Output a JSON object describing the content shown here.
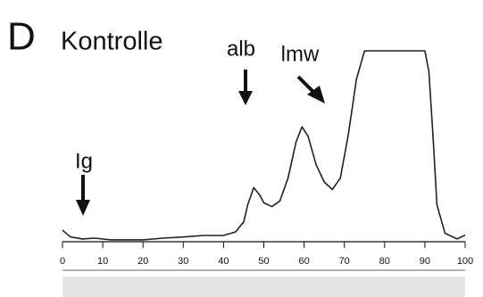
{
  "chart_data": {
    "type": "line",
    "panel_label": "D",
    "title": "Kontrolle",
    "annotations": [
      "alb",
      "lmw",
      "Ig"
    ],
    "x": [
      0,
      2,
      5,
      8,
      12,
      20,
      25,
      30,
      35,
      40,
      43,
      45,
      46,
      47.5,
      49,
      50,
      52,
      54,
      56,
      58,
      59.5,
      61,
      63,
      65,
      67,
      69,
      71,
      73,
      75,
      80,
      85,
      90,
      91,
      92,
      93,
      95,
      98,
      100
    ],
    "values": [
      5.6,
      2,
      1,
      1.4,
      0.5,
      0.5,
      1.4,
      2,
      2.8,
      2.8,
      4.7,
      10,
      19,
      28,
      24,
      20,
      18,
      21,
      33,
      52,
      60,
      55,
      40,
      31,
      27,
      33,
      56,
      85,
      100,
      100,
      100,
      100,
      89,
      56,
      19,
      4,
      1,
      3
    ],
    "color": "#222222",
    "xlim": [
      0,
      100
    ],
    "xticks": [
      0,
      10,
      20,
      30,
      40,
      50,
      60,
      70,
      80,
      90,
      100
    ],
    "ylim": [
      0,
      100
    ]
  }
}
